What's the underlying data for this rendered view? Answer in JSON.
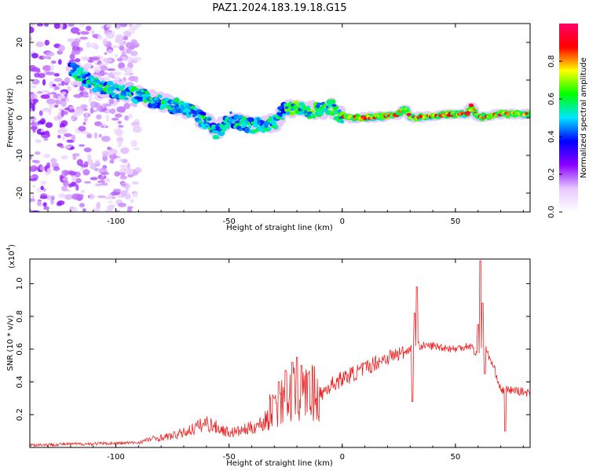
{
  "title": "PAZ1.2024.183.19.18.G15",
  "chart_data": [
    {
      "type": "heatmap",
      "xlabel": "Height of straight line (km)",
      "ylabel": "Frequency (Hz)",
      "xlim": [
        -138,
        83
      ],
      "ylim": [
        -25,
        25
      ],
      "xticks": [
        -100,
        -50,
        0,
        50
      ],
      "yticks": [
        -20,
        -10,
        0,
        10,
        20
      ],
      "colorbar": {
        "label": "Normalized spectral amplitude",
        "range": [
          0,
          1
        ],
        "ticks": [
          "0.0",
          "0.2",
          "0.4",
          "0.6",
          "0.8"
        ],
        "tick_values": [
          0,
          0.2,
          0.4,
          0.6,
          0.8
        ],
        "colors": [
          "#ffffff",
          "#e6c8ff",
          "#8c00ff",
          "#0000ff",
          "#00e5ff",
          "#00ff00",
          "#ffff00",
          "#ff0000",
          "#ff0066"
        ]
      },
      "ridge": {
        "x": [
          -120,
          -110,
          -100,
          -90,
          -80,
          -70,
          -60,
          -55,
          -50,
          -45,
          -40,
          -35,
          -30,
          -25,
          -20,
          -10,
          -5,
          0,
          10,
          20,
          25,
          28,
          30,
          40,
          50,
          55,
          57,
          60,
          70,
          83
        ],
        "y": [
          13,
          9,
          7,
          6,
          4,
          2.5,
          -1,
          -4,
          0,
          -1.5,
          -2,
          -2,
          -1.5,
          2.5,
          2,
          2,
          3,
          0,
          0,
          0.5,
          1,
          2.5,
          0,
          0.5,
          1,
          1,
          3,
          0,
          1,
          1
        ]
      },
      "scatter_region": {
        "x": [
          -138,
          -90
        ],
        "y": [
          -25,
          25
        ]
      }
    },
    {
      "type": "line",
      "xlabel": "Height of straight line (km)",
      "ylabel": "SNR (10 * v/v)",
      "scale_label": "(x10",
      "scale_exp": "4",
      "scale_close": ")",
      "color": "#ee2222",
      "xlim": [
        -138,
        83
      ],
      "ylim": [
        0,
        1.15
      ],
      "xticks": [
        -100,
        -50,
        0,
        50
      ],
      "yticks": [
        "0.2",
        "0.4",
        "0.6",
        "0.8",
        "1.0"
      ],
      "ytick_values": [
        0.2,
        0.4,
        0.6,
        0.8,
        1.0
      ],
      "envelope": {
        "x": [
          -138,
          -120,
          -100,
          -90,
          -85,
          -80,
          -75,
          -70,
          -65,
          -60,
          -55,
          -50,
          -45,
          -40,
          -35,
          -30,
          -25,
          -20,
          -15,
          -10,
          -5,
          0,
          5,
          10,
          15,
          20,
          25,
          30,
          31,
          33,
          35,
          40,
          45,
          50,
          55,
          57,
          60,
          62,
          65,
          68,
          70,
          75,
          80,
          83
        ],
        "y": [
          0.015,
          0.02,
          0.025,
          0.03,
          0.05,
          0.06,
          0.07,
          0.09,
          0.12,
          0.15,
          0.12,
          0.09,
          0.1,
          0.12,
          0.15,
          0.25,
          0.3,
          0.32,
          0.33,
          0.32,
          0.38,
          0.42,
          0.45,
          0.48,
          0.52,
          0.55,
          0.57,
          0.6,
          0.65,
          0.62,
          0.62,
          0.62,
          0.61,
          0.6,
          0.62,
          0.62,
          0.55,
          0.65,
          0.55,
          0.45,
          0.35,
          0.35,
          0.34,
          0.33
        ]
      },
      "spikes": [
        {
          "x": -30,
          "y": 0.3
        },
        {
          "x": -28,
          "y": 0.4
        },
        {
          "x": -25,
          "y": 0.47
        },
        {
          "x": -22,
          "y": 0.52
        },
        {
          "x": -20,
          "y": 0.55
        },
        {
          "x": -18,
          "y": 0.5
        },
        {
          "x": -15,
          "y": 0.45
        },
        {
          "x": 32,
          "y": 0.82
        },
        {
          "x": 31,
          "y": 0.28
        },
        {
          "x": 33,
          "y": 0.98
        },
        {
          "x": 60,
          "y": 0.75
        },
        {
          "x": 61,
          "y": 1.14
        },
        {
          "x": 62,
          "y": 0.88
        },
        {
          "x": 63,
          "y": 0.45
        },
        {
          "x": 72,
          "y": 0.1
        }
      ]
    }
  ]
}
